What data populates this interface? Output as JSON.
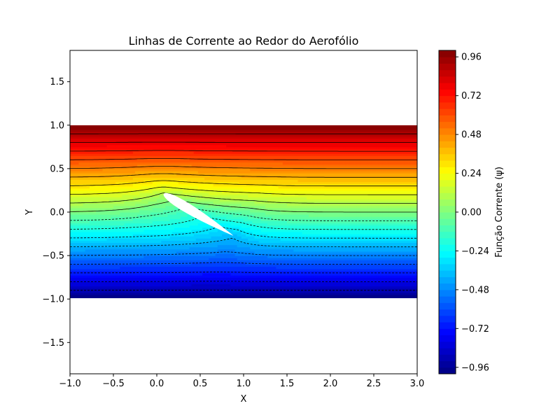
{
  "chart_data": {
    "type": "contour",
    "title": "Linhas de Corrente ao Redor do Aerofólio",
    "xlabel": "X",
    "ylabel": "Y",
    "xlim": [
      -1.0,
      3.0
    ],
    "ylim": [
      -1.86,
      1.86
    ],
    "x_ticks": [
      {
        "value": -1.0,
        "label": "−1.0"
      },
      {
        "value": -0.5,
        "label": "−0.5"
      },
      {
        "value": 0.0,
        "label": "0.0"
      },
      {
        "value": 0.5,
        "label": "0.5"
      },
      {
        "value": 1.0,
        "label": "1.0"
      },
      {
        "value": 1.5,
        "label": "1.5"
      },
      {
        "value": 2.0,
        "label": "2.0"
      },
      {
        "value": 2.5,
        "label": "2.5"
      },
      {
        "value": 3.0,
        "label": "3.0"
      }
    ],
    "y_ticks": [
      {
        "value": 1.5,
        "label": "1.5"
      },
      {
        "value": 1.0,
        "label": "1.0"
      },
      {
        "value": 0.5,
        "label": "0.5"
      },
      {
        "value": 0.0,
        "label": "0.0"
      },
      {
        "value": -0.5,
        "label": "−0.5"
      },
      {
        "value": -1.0,
        "label": "−1.0"
      },
      {
        "value": -1.5,
        "label": "−1.5"
      }
    ],
    "domain": {
      "x": [
        -1.0,
        3.0
      ],
      "y": [
        -1.0,
        1.0
      ]
    },
    "field": {
      "variable": "ψ",
      "range": [
        -1.0,
        1.0
      ],
      "colormap": "jet",
      "filled_levels": 50,
      "line_levels": 20,
      "line_color": "#000000",
      "negative_line_style": "dashed"
    },
    "airfoil": {
      "leading_edge": [
        0.08,
        0.21
      ],
      "trailing_edge": [
        0.88,
        -0.27
      ],
      "fill": "#ffffff"
    },
    "colorbar": {
      "label": "Função Corrente (ψ)",
      "range": [
        -1.0,
        1.0
      ],
      "ticks": [
        {
          "value": 0.96,
          "label": "0.96"
        },
        {
          "value": 0.72,
          "label": "0.72"
        },
        {
          "value": 0.48,
          "label": "0.48"
        },
        {
          "value": 0.24,
          "label": "0.24"
        },
        {
          "value": 0.0,
          "label": "0.00"
        },
        {
          "value": -0.24,
          "label": "−0.24"
        },
        {
          "value": -0.48,
          "label": "−0.48"
        },
        {
          "value": -0.72,
          "label": "−0.72"
        },
        {
          "value": -0.96,
          "label": "−0.96"
        }
      ]
    }
  }
}
